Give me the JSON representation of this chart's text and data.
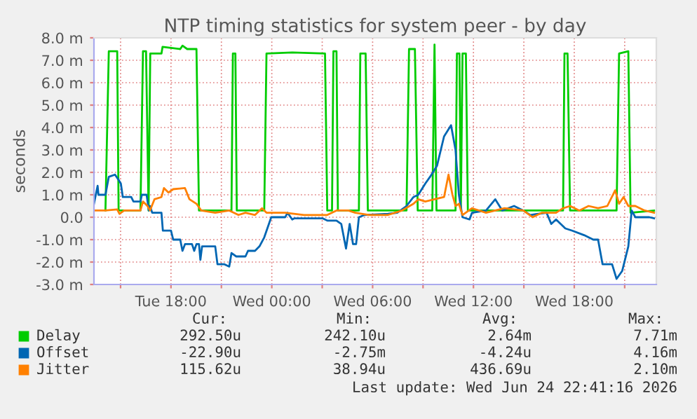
{
  "chart_data": {
    "type": "line",
    "title": "NTP timing statistics for system peer - by day",
    "ylabel": "seconds",
    "xlim": [
      "2026-06-23T13:25",
      "2026-06-24T22:53"
    ],
    "xticks": [
      {
        "value": "2026-06-23T15:00",
        "label": null
      },
      {
        "value": "2026-06-23T18:00",
        "label": "Tue 18:00"
      },
      {
        "value": "2026-06-23T21:00",
        "label": null
      },
      {
        "value": "2026-06-24T00:00",
        "label": "Wed 00:00"
      },
      {
        "value": "2026-06-24T03:00",
        "label": null
      },
      {
        "value": "2026-06-24T06:00",
        "label": "Wed 06:00"
      },
      {
        "value": "2026-06-24T09:00",
        "label": null
      },
      {
        "value": "2026-06-24T12:00",
        "label": "Wed 12:00"
      },
      {
        "value": "2026-06-24T15:00",
        "label": null
      },
      {
        "value": "2026-06-24T18:00",
        "label": "Wed 18:00"
      },
      {
        "value": "2026-06-24T21:00",
        "label": null
      }
    ],
    "ylim": [
      -3,
      8
    ],
    "yticks": [
      {
        "value": -3,
        "label": "-3.0 m"
      },
      {
        "value": -2,
        "label": "-2.0 m"
      },
      {
        "value": -1,
        "label": "-1.0 m"
      },
      {
        "value": 0,
        "label": "0.0"
      },
      {
        "value": 1,
        "label": "1.0 m"
      },
      {
        "value": 2,
        "label": "2.0 m"
      },
      {
        "value": 3,
        "label": "3.0 m"
      },
      {
        "value": 4,
        "label": "4.0 m"
      },
      {
        "value": 5,
        "label": "5.0 m"
      },
      {
        "value": 6,
        "label": "6.0 m"
      },
      {
        "value": 7,
        "label": "7.0 m"
      },
      {
        "value": 8,
        "label": "8.0 m"
      }
    ],
    "grid": true,
    "legend": "bottom",
    "marker": "none",
    "line_style": "solid",
    "series": [
      {
        "name": "Delay",
        "color": "#00cc00",
        "x": [
          "2026-06-23T14:06",
          "2026-06-23T14:18",
          "2026-06-23T14:48",
          "2026-06-23T14:53",
          "2026-06-23T16:11",
          "2026-06-23T16:20",
          "2026-06-23T16:31",
          "2026-06-23T16:40",
          "2026-06-23T16:46",
          "2026-06-23T17:26",
          "2026-06-23T17:30",
          "2026-06-23T18:33",
          "2026-06-23T18:41",
          "2026-06-23T18:58",
          "2026-06-23T19:31",
          "2026-06-23T19:40",
          "2026-06-23T21:36",
          "2026-06-23T21:41",
          "2026-06-23T21:50",
          "2026-06-23T21:55",
          "2026-06-23T23:33",
          "2026-06-23T23:41",
          "2026-06-24T01:13",
          "2026-06-24T03:10",
          "2026-06-24T03:18",
          "2026-06-24T03:35",
          "2026-06-24T03:40",
          "2026-06-24T03:51",
          "2026-06-24T03:56",
          "2026-06-24T05:11",
          "2026-06-24T05:16",
          "2026-06-24T05:35",
          "2026-06-24T05:43",
          "2026-06-24T08:01",
          "2026-06-24T08:10",
          "2026-06-24T08:31",
          "2026-06-24T08:41",
          "2026-06-24T09:33",
          "2026-06-24T09:41",
          "2026-06-24T09:48",
          "2026-06-24T10:56",
          "2026-06-24T11:01",
          "2026-06-24T11:10",
          "2026-06-24T11:15",
          "2026-06-24T11:21",
          "2026-06-24T11:33",
          "2026-06-24T11:40",
          "2026-06-24T17:20",
          "2026-06-24T17:25",
          "2026-06-24T17:36",
          "2026-06-24T17:45",
          "2026-06-24T20:31",
          "2026-06-24T20:40",
          "2026-06-24T21:13",
          "2026-06-24T21:21",
          "2026-06-24T22:45"
        ],
        "values": [
          0.3,
          7.4,
          7.4,
          0.3,
          0.3,
          7.4,
          7.4,
          0.3,
          7.3,
          7.3,
          7.6,
          7.5,
          7.65,
          7.5,
          7.5,
          0.3,
          0.3,
          7.3,
          7.3,
          0.3,
          0.3,
          7.3,
          7.35,
          7.3,
          0.3,
          0.3,
          7.4,
          7.4,
          0.3,
          0.3,
          7.3,
          7.3,
          0.3,
          0.3,
          7.5,
          7.5,
          0.3,
          0.3,
          7.7,
          0.3,
          0.3,
          7.3,
          7.3,
          0.3,
          7.3,
          7.3,
          0.3,
          0.3,
          7.3,
          7.3,
          0.3,
          0.3,
          7.3,
          7.4,
          0.2,
          0.3
        ]
      },
      {
        "name": "Offset",
        "color": "#0066b3",
        "x": [
          "2026-06-23T13:25",
          "2026-06-23T13:38",
          "2026-06-23T13:41",
          "2026-06-23T14:06",
          "2026-06-23T14:18",
          "2026-06-23T14:40",
          "2026-06-23T14:51",
          "2026-06-23T15:01",
          "2026-06-23T15:08",
          "2026-06-23T15:38",
          "2026-06-23T15:46",
          "2026-06-23T16:11",
          "2026-06-23T16:16",
          "2026-06-23T16:33",
          "2026-06-23T16:41",
          "2026-06-23T16:45",
          "2026-06-23T16:53",
          "2026-06-23T17:26",
          "2026-06-23T17:31",
          "2026-06-23T18:00",
          "2026-06-23T18:08",
          "2026-06-23T18:33",
          "2026-06-23T18:41",
          "2026-06-23T18:50",
          "2026-06-23T19:15",
          "2026-06-23T19:23",
          "2026-06-23T19:31",
          "2026-06-23T19:40",
          "2026-06-23T19:45",
          "2026-06-23T19:51",
          "2026-06-23T20:38",
          "2026-06-23T20:46",
          "2026-06-23T21:11",
          "2026-06-23T21:28",
          "2026-06-23T21:36",
          "2026-06-23T21:53",
          "2026-06-23T22:26",
          "2026-06-23T22:35",
          "2026-06-23T23:00",
          "2026-06-23T23:16",
          "2026-06-23T23:33",
          "2026-06-23T23:58",
          "2026-06-24T00:48",
          "2026-06-24T00:56",
          "2026-06-24T01:13",
          "2026-06-24T01:21",
          "2026-06-24T03:01",
          "2026-06-24T03:18",
          "2026-06-24T03:51",
          "2026-06-24T04:08",
          "2026-06-24T04:25",
          "2026-06-24T04:38",
          "2026-06-24T04:50",
          "2026-06-24T05:01",
          "2026-06-24T05:11",
          "2026-06-24T05:31",
          "2026-06-24T06:55",
          "2026-06-24T07:28",
          "2026-06-24T08:01",
          "2026-06-24T08:26",
          "2026-06-24T08:43",
          "2026-06-24T09:08",
          "2026-06-24T09:25",
          "2026-06-24T09:50",
          "2026-06-24T10:15",
          "2026-06-24T10:40",
          "2026-06-24T10:56",
          "2026-06-24T11:08",
          "2026-06-24T11:21",
          "2026-06-24T11:46",
          "2026-06-24T11:55",
          "2026-06-24T12:45",
          "2026-06-24T13:18",
          "2026-06-24T13:43",
          "2026-06-24T14:25",
          "2026-06-24T14:58",
          "2026-06-24T15:23",
          "2026-06-24T16:21",
          "2026-06-24T16:38",
          "2026-06-24T16:55",
          "2026-06-24T17:28",
          "2026-06-24T17:53",
          "2026-06-24T18:35",
          "2026-06-24T19:08",
          "2026-06-24T19:25",
          "2026-06-24T19:41",
          "2026-06-24T20:15",
          "2026-06-24T20:31",
          "2026-06-24T20:51",
          "2026-06-24T21:13",
          "2026-06-24T21:25",
          "2026-06-24T21:38",
          "2026-06-24T22:28",
          "2026-06-24T22:45"
        ],
        "values": [
          0.6,
          1.4,
          1.0,
          1.0,
          1.8,
          1.9,
          1.7,
          1.5,
          0.9,
          0.9,
          0.7,
          0.7,
          1.0,
          1.0,
          0.3,
          0.5,
          0.2,
          0.2,
          -0.6,
          -0.6,
          -1.0,
          -1.0,
          -1.5,
          -1.2,
          -1.2,
          -1.5,
          -1.2,
          -1.2,
          -1.9,
          -1.3,
          -1.3,
          -2.1,
          -2.1,
          -2.2,
          -1.6,
          -1.75,
          -1.75,
          -1.5,
          -1.5,
          -1.3,
          -0.9,
          0.0,
          0.0,
          0.2,
          -0.1,
          -0.05,
          -0.05,
          -0.15,
          -0.15,
          -0.3,
          -1.4,
          -0.3,
          -1.2,
          -1.2,
          0.0,
          0.1,
          0.15,
          0.2,
          0.5,
          0.9,
          1.0,
          1.5,
          1.8,
          2.3,
          3.6,
          4.1,
          3.0,
          1.0,
          0.0,
          -0.1,
          0.2,
          0.3,
          0.8,
          0.3,
          0.5,
          0.3,
          0.1,
          0.2,
          -0.3,
          -0.1,
          -0.5,
          -0.6,
          -0.8,
          -1.0,
          -1.0,
          -2.1,
          -2.1,
          -2.75,
          -2.4,
          -1.3,
          0.3,
          0.0,
          0.0,
          -0.05
        ]
      },
      {
        "name": "Jitter",
        "color": "#ff8000",
        "x": [
          "2026-06-23T13:25",
          "2026-06-23T13:50",
          "2026-06-23T14:06",
          "2026-06-23T14:48",
          "2026-06-23T14:56",
          "2026-06-23T15:13",
          "2026-06-23T16:11",
          "2026-06-23T16:20",
          "2026-06-23T16:36",
          "2026-06-23T16:45",
          "2026-06-23T17:01",
          "2026-06-23T17:26",
          "2026-06-23T17:35",
          "2026-06-23T17:51",
          "2026-06-23T18:08",
          "2026-06-23T18:50",
          "2026-06-23T19:06",
          "2026-06-23T19:31",
          "2026-06-23T19:48",
          "2026-06-23T20:38",
          "2026-06-23T21:28",
          "2026-06-23T22:01",
          "2026-06-23T22:26",
          "2026-06-23T23:00",
          "2026-06-23T23:25",
          "2026-06-23T23:41",
          "2026-06-24T00:48",
          "2026-06-24T01:55",
          "2026-06-24T03:18",
          "2026-06-24T03:51",
          "2026-06-24T04:08",
          "2026-06-24T04:33",
          "2026-06-24T04:58",
          "2026-06-24T05:48",
          "2026-06-24T06:55",
          "2026-06-24T07:45",
          "2026-06-24T08:26",
          "2026-06-24T08:43",
          "2026-06-24T09:08",
          "2026-06-24T09:41",
          "2026-06-24T10:15",
          "2026-06-24T10:31",
          "2026-06-24T10:45",
          "2026-06-24T10:56",
          "2026-06-24T11:08",
          "2026-06-24T11:21",
          "2026-06-24T11:55",
          "2026-06-24T12:45",
          "2026-06-24T13:51",
          "2026-06-24T14:58",
          "2026-06-24T15:31",
          "2026-06-24T16:05",
          "2026-06-24T16:55",
          "2026-06-24T17:20",
          "2026-06-24T17:45",
          "2026-06-24T18:18",
          "2026-06-24T18:51",
          "2026-06-24T19:25",
          "2026-06-24T19:58",
          "2026-06-24T20:26",
          "2026-06-24T20:40",
          "2026-06-24T20:56",
          "2026-06-24T21:13",
          "2026-06-24T21:38",
          "2026-06-24T22:11",
          "2026-06-24T22:45"
        ],
        "values": [
          0.3,
          0.3,
          0.3,
          0.35,
          0.15,
          0.3,
          0.3,
          0.7,
          0.5,
          0.3,
          0.8,
          0.9,
          1.3,
          1.1,
          1.25,
          1.3,
          0.8,
          0.6,
          0.3,
          0.2,
          0.3,
          0.1,
          0.2,
          0.1,
          0.4,
          0.2,
          0.2,
          0.1,
          0.1,
          0.3,
          0.3,
          0.3,
          0.2,
          0.1,
          0.1,
          0.3,
          0.6,
          0.8,
          0.7,
          0.8,
          0.9,
          1.9,
          1.0,
          0.5,
          0.6,
          0.1,
          0.4,
          0.2,
          0.4,
          0.3,
          0.0,
          0.2,
          0.2,
          0.4,
          0.5,
          0.3,
          0.5,
          0.4,
          0.5,
          1.2,
          0.6,
          0.9,
          0.5,
          0.5,
          0.3,
          0.2
        ]
      }
    ],
    "annotations": [
      "Cur:",
      "Min:",
      "Avg:",
      "Max:",
      "292.50u",
      "242.10u",
      "2.64m",
      "7.71m",
      "-22.90u",
      "-2.75m",
      "-4.24u",
      "4.16m",
      "115.62u",
      "38.94u",
      "436.69u",
      "2.10m",
      "Last update: Wed Jun 24 22:41:16 2026"
    ]
  }
}
